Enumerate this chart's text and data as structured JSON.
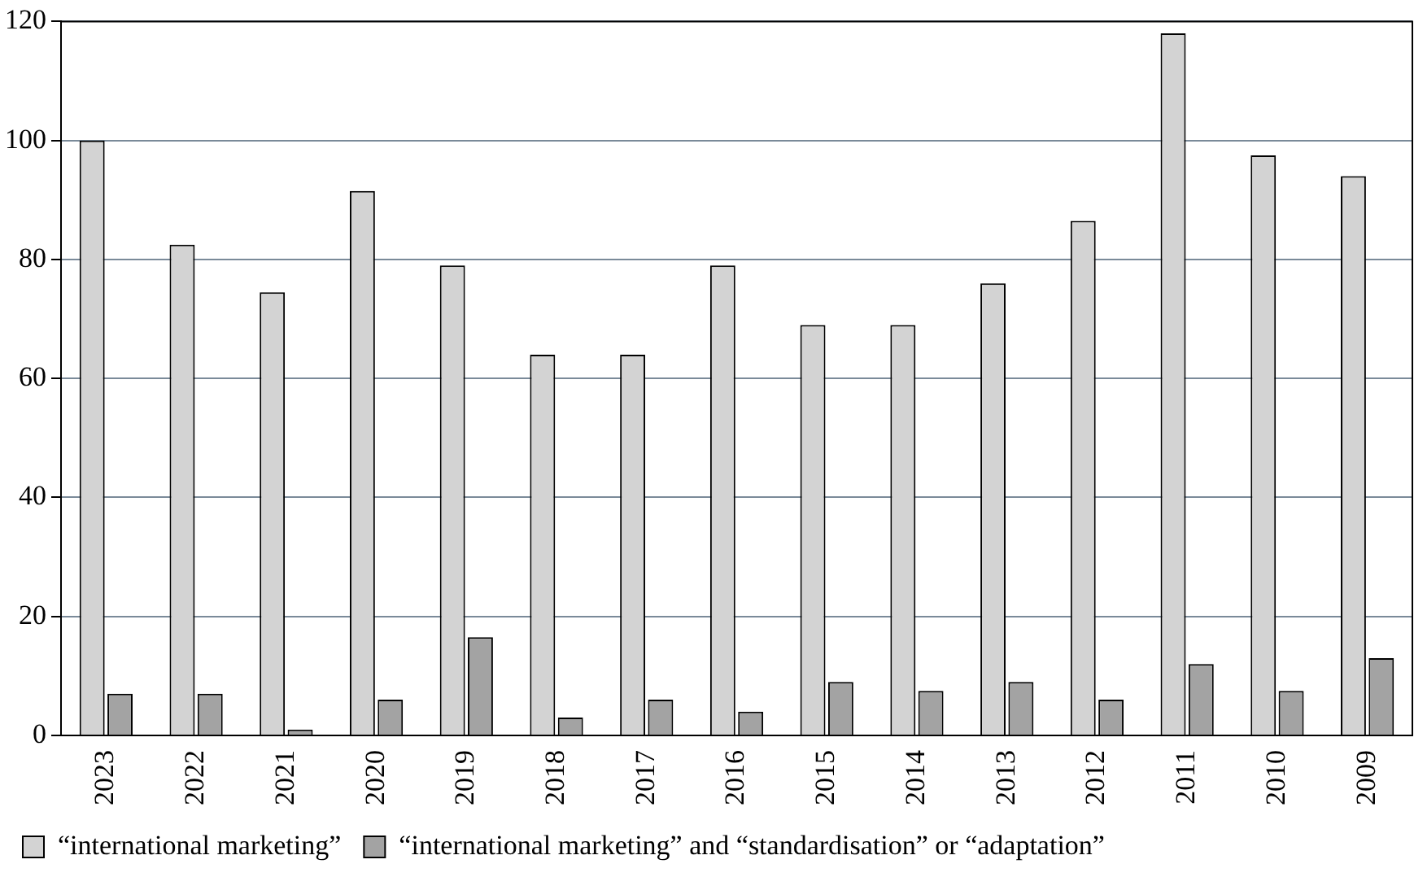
{
  "chart_data": {
    "type": "bar",
    "categories": [
      "2023",
      "2022",
      "2021",
      "2020",
      "2019",
      "2018",
      "2017",
      "2016",
      "2015",
      "2014",
      "2013",
      "2012",
      "2011",
      "2010",
      "2009"
    ],
    "series": [
      {
        "name": "“international marketing”",
        "color": "#d3d3d3",
        "values": [
          100,
          82.5,
          74.5,
          91.5,
          79,
          64,
          64,
          79,
          69,
          69,
          76,
          86.5,
          118,
          97.5,
          94
        ]
      },
      {
        "name": "“international marketing” and “standardisation” or “adaptation”",
        "color": "#a3a3a3",
        "values": [
          7,
          7,
          1,
          6,
          16.5,
          3,
          6,
          4,
          9,
          7.5,
          9,
          6,
          12,
          7.5,
          13
        ]
      }
    ],
    "ylim": [
      0,
      120
    ],
    "yticks": [
      0,
      20,
      40,
      60,
      80,
      100,
      120
    ],
    "grid": "y",
    "legend": "bottom left"
  }
}
